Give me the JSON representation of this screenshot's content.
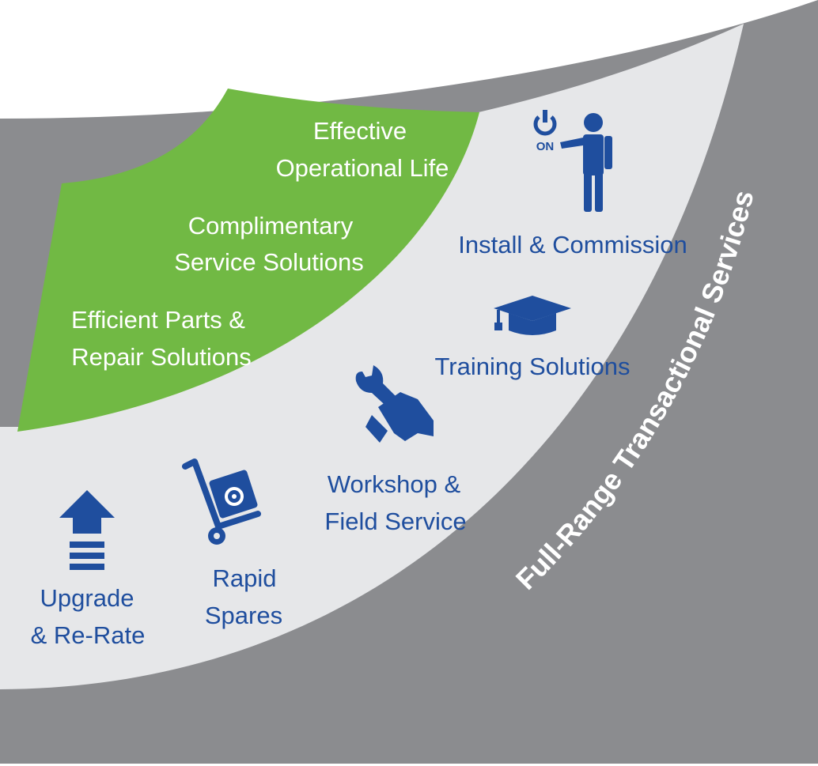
{
  "outer_band": {
    "label": "Full-Range Transactional Services"
  },
  "core_items": [
    {
      "lines": [
        "Effective",
        "Operational Life"
      ]
    },
    {
      "lines": [
        "Complimentary",
        "Service Solutions"
      ]
    },
    {
      "lines": [
        "Efficient Parts &",
        "Repair Solutions"
      ]
    }
  ],
  "services": [
    {
      "icon": "person-power-on-icon",
      "icon_text": "ON",
      "lines": [
        "Install & Commission"
      ]
    },
    {
      "icon": "graduation-cap-icon",
      "lines": [
        "Training Solutions"
      ]
    },
    {
      "icon": "wrench-hand-icon",
      "lines": [
        "Workshop &",
        "Field Service"
      ]
    },
    {
      "icon": "hand-truck-icon",
      "lines": [
        "Rapid",
        "Spares"
      ]
    },
    {
      "icon": "upgrade-arrow-icon",
      "lines": [
        "Upgrade",
        "& Re-Rate"
      ]
    }
  ],
  "colors": {
    "outer_band": "#8b8c8f",
    "middle_band": "#e6e7e9",
    "core": "#71b944",
    "accent_blue": "#1f4e9e",
    "text_white": "#ffffff"
  }
}
